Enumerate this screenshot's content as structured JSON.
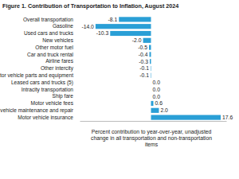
{
  "chart_data": {
    "type": "bar",
    "orientation": "horizontal",
    "title": "Figure 1. Contribution of Transportation to Inflation, August 2024",
    "x_label": "Percent contribution to year-over-year, unadjusted change in all transportation and non-transportation items",
    "categories": [
      "Overall transportation",
      "Gasoline",
      "Used cars and trucks",
      "New vehicles",
      "Other motor fuel",
      "Car and truck rental",
      "Airline fares",
      "Other intercity",
      "Motor vehicle parts and equipment",
      "Leased cars and trucks (5)",
      "Intracity transportation",
      "Ship fare",
      "Motor vehicle fees",
      "Motor vehicle maintenance and repair",
      "Motor vehicle insurance"
    ],
    "values": [
      -8.1,
      -14.0,
      -10.3,
      -2.0,
      -0.5,
      -0.4,
      -0.3,
      -0.1,
      -0.1,
      0.0,
      0.0,
      0.0,
      0.6,
      2.0,
      17.6
    ],
    "value_labels": [
      "-8.1",
      "-14.0",
      "-10.3",
      "-2.0",
      "-0.5",
      "-0.4",
      "-0.3",
      "-0.1",
      "-0.1",
      "0.0",
      "0.0",
      "0.0",
      "0.6",
      "2.0",
      "17.6"
    ],
    "color": "#2a9fd6",
    "xlim": [
      -18,
      19
    ],
    "data_labels": true,
    "tick_labels": "y",
    "grid": false
  }
}
